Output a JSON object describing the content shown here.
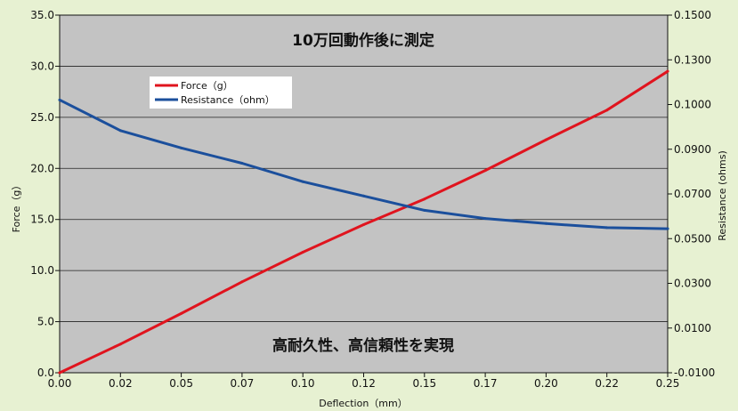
{
  "chart_data": {
    "type": "line",
    "xlabel": "Deflection（mm）",
    "ylabel": "Force（g）",
    "y2label": "Resistance (ohms)",
    "x_ticks": [
      "0.00",
      "0.02",
      "0.05",
      "0.07",
      "0.10",
      "0.12",
      "0.15",
      "0.17",
      "0.20",
      "0.22",
      "0.25"
    ],
    "y_ticks": [
      "0.0",
      "5.0",
      "10.0",
      "15.0",
      "20.0",
      "25.0",
      "30.0",
      "35.0"
    ],
    "y2_ticks": [
      "-0.0100",
      "0.0100",
      "0.0300",
      "0.0500",
      "0.0700",
      "0.0900",
      "0.1000",
      "0.1300",
      "0.1500"
    ],
    "xlim": [
      0,
      0.25
    ],
    "ylim": [
      0,
      35
    ],
    "grid": true,
    "legend_position": "top-left",
    "annotations": [
      "10万回動作後に測定",
      "高耐久性、高信頼性を実現"
    ],
    "series": [
      {
        "name": "Force（g）",
        "axis": "left",
        "color": "#e0141e",
        "x": [
          0.0,
          0.025,
          0.05,
          0.075,
          0.1,
          0.125,
          0.15,
          0.175,
          0.2,
          0.225,
          0.25
        ],
        "y": [
          0.0,
          2.8,
          5.8,
          8.9,
          11.8,
          14.5,
          17.0,
          19.8,
          22.8,
          25.7,
          29.5
        ]
      },
      {
        "name": "Resistance（ohm）",
        "axis": "left",
        "color": "#1b4f9c",
        "x": [
          0.0,
          0.025,
          0.05,
          0.075,
          0.1,
          0.125,
          0.15,
          0.175,
          0.2,
          0.225,
          0.25
        ],
        "y": [
          26.7,
          23.7,
          22.0,
          20.5,
          18.7,
          17.3,
          15.9,
          15.1,
          14.6,
          14.2,
          14.1
        ]
      }
    ]
  },
  "colors": {
    "plot_background": "#c3c3c3",
    "page_background": "#e7f1d2",
    "grid": "#222222"
  }
}
